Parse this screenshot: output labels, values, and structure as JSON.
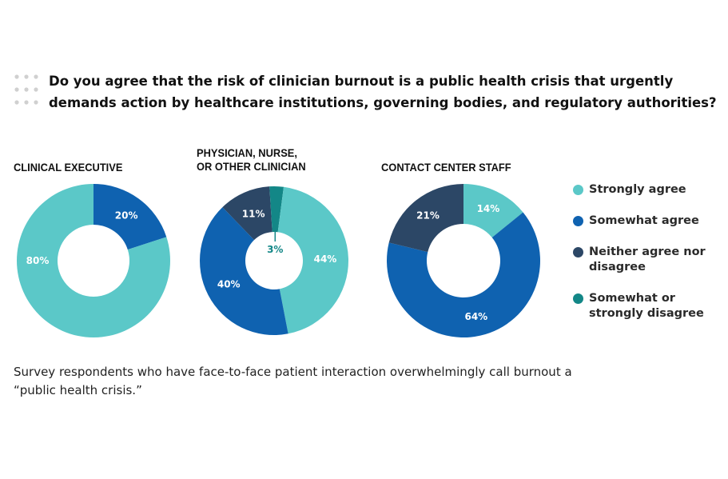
{
  "title": "Do you agree that the risk of clinician burnout is a public health crisis that urgently demands action by healthcare institutions, governing bodies, and regulatory authorities?",
  "caption": "Survey respondents who have face-to-face patient interaction overwhelmingly call burnout a “public health crisis.”",
  "legend": [
    {
      "label": "Strongly agree",
      "color": "#5bc8c8"
    },
    {
      "label": "Somewhat agree",
      "color": "#0f62b0"
    },
    {
      "label": "Neither agree nor disagree",
      "color": "#2c4766"
    },
    {
      "label": "Somewhat or strongly disagree",
      "color": "#138787"
    }
  ],
  "chart_data": [
    {
      "type": "pie",
      "donut": true,
      "title": "CLINICAL EXECUTIVE",
      "slices": [
        {
          "label": "Strongly agree",
          "value": 80,
          "text": "80%"
        },
        {
          "label": "Somewhat agree",
          "value": 20,
          "text": "20%"
        }
      ]
    },
    {
      "type": "pie",
      "donut": true,
      "title": "PHYSICIAN, NURSE, OR OTHER CLINICIAN",
      "slices": [
        {
          "label": "Strongly agree",
          "value": 44,
          "text": "44%"
        },
        {
          "label": "Somewhat agree",
          "value": 40,
          "text": "40%"
        },
        {
          "label": "Neither agree nor disagree",
          "value": 11,
          "text": "11%"
        },
        {
          "label": "Somewhat or strongly disagree",
          "value": 3,
          "text": "3%"
        }
      ]
    },
    {
      "type": "pie",
      "donut": true,
      "title": "CONTACT CENTER STAFF",
      "slices": [
        {
          "label": "Strongly agree",
          "value": 14,
          "text": "14%"
        },
        {
          "label": "Somewhat agree",
          "value": 64,
          "text": "64%"
        },
        {
          "label": "Neither agree nor disagree",
          "value": 21,
          "text": "21%"
        }
      ]
    }
  ]
}
